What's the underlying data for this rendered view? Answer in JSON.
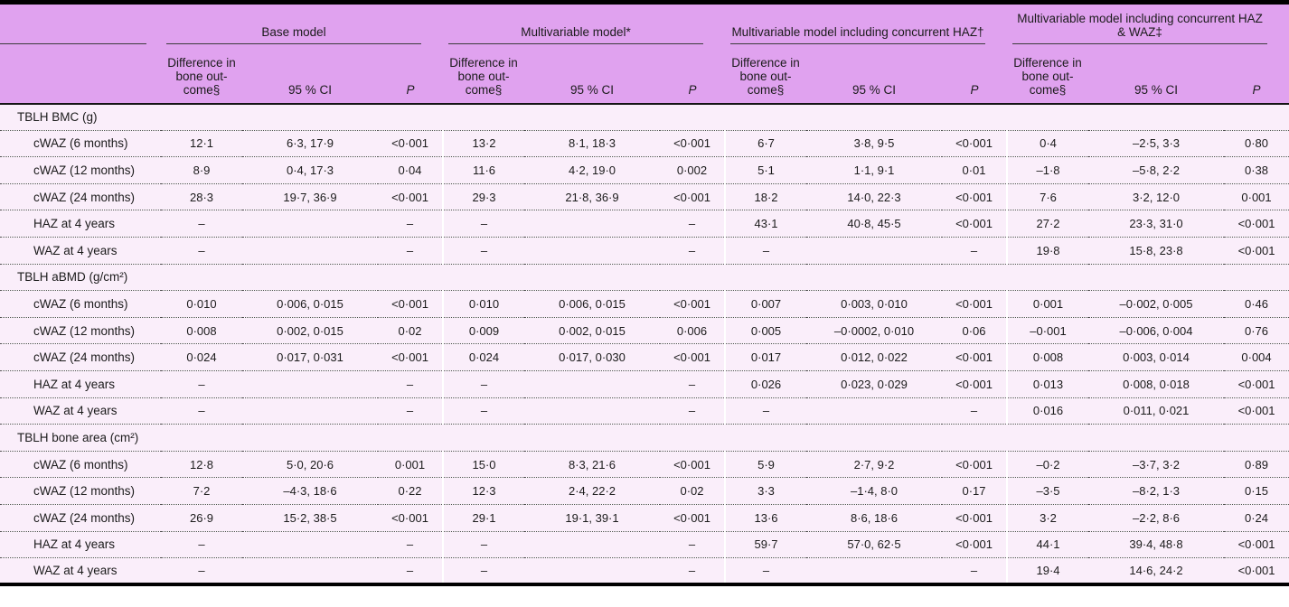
{
  "colors": {
    "header_bg": "#e0a2ef",
    "body_bg": "#faeefa",
    "text": "#1b1b1b",
    "border": "#000000"
  },
  "table": {
    "col_groups": [
      "",
      "Base model",
      "Multivariable model*",
      "Multivariable model including concurrent HAZ†",
      "Multivariable model including concurrent HAZ & WAZ‡"
    ],
    "sub_headers": {
      "diff_lines": [
        "Difference in",
        "bone out-",
        "come§"
      ],
      "ci": "95 % CI",
      "p": "P"
    },
    "sections": [
      {
        "title": "TBLH BMC (g)",
        "rows": [
          {
            "label": "cWAZ (6 months)",
            "cells": [
              "12·1",
              "6·3, 17·9",
              "<0·001",
              "13·2",
              "8·1, 18·3",
              "<0·001",
              "6·7",
              "3·8, 9·5",
              "<0·001",
              "0·4",
              "–2·5, 3·3",
              "0·80"
            ]
          },
          {
            "label": "cWAZ (12 months)",
            "cells": [
              "8·9",
              "0·4, 17·3",
              "0·04",
              "11·6",
              "4·2, 19·0",
              "0·002",
              "5·1",
              "1·1, 9·1",
              "0·01",
              "–1·8",
              "–5·8, 2·2",
              "0·38"
            ]
          },
          {
            "label": "cWAZ (24 months)",
            "cells": [
              "28·3",
              "19·7, 36·9",
              "<0·001",
              "29·3",
              "21·8, 36·9",
              "<0·001",
              "18·2",
              "14·0, 22·3",
              "<0·001",
              "7·6",
              "3·2, 12·0",
              "0·001"
            ]
          },
          {
            "label": "HAZ at 4 years",
            "cells": [
              "–",
              "",
              "–",
              "–",
              "",
              "–",
              "43·1",
              "40·8, 45·5",
              "<0·001",
              "27·2",
              "23·3, 31·0",
              "<0·001"
            ]
          },
          {
            "label": "WAZ at 4 years",
            "cells": [
              "–",
              "",
              "–",
              "–",
              "",
              "–",
              "–",
              "",
              "–",
              "19·8",
              "15·8, 23·8",
              "<0·001"
            ]
          }
        ]
      },
      {
        "title": "TBLH aBMD (g/cm²)",
        "rows": [
          {
            "label": "cWAZ (6 months)",
            "cells": [
              "0·010",
              "0·006, 0·015",
              "<0·001",
              "0·010",
              "0·006, 0·015",
              "<0·001",
              "0·007",
              "0·003, 0·010",
              "<0·001",
              "0·001",
              "–0·002, 0·005",
              "0·46"
            ]
          },
          {
            "label": "cWAZ (12 months)",
            "cells": [
              "0·008",
              "0·002, 0·015",
              "0·02",
              "0·009",
              "0·002, 0·015",
              "0·006",
              "0·005",
              "–0·0002, 0·010",
              "0·06",
              "–0·001",
              "–0·006, 0·004",
              "0·76"
            ]
          },
          {
            "label": "cWAZ (24 months)",
            "cells": [
              "0·024",
              "0·017, 0·031",
              "<0·001",
              "0·024",
              "0·017, 0·030",
              "<0·001",
              "0·017",
              "0·012, 0·022",
              "<0·001",
              "0·008",
              "0·003, 0·014",
              "0·004"
            ]
          },
          {
            "label": "HAZ at 4 years",
            "cells": [
              "–",
              "",
              "–",
              "–",
              "",
              "–",
              "0·026",
              "0·023, 0·029",
              "<0·001",
              "0·013",
              "0·008, 0·018",
              "<0·001"
            ]
          },
          {
            "label": "WAZ at 4 years",
            "cells": [
              "–",
              "",
              "–",
              "–",
              "",
              "–",
              "–",
              "",
              "–",
              "0·016",
              "0·011, 0·021",
              "<0·001"
            ]
          }
        ]
      },
      {
        "title": "TBLH bone area (cm²)",
        "rows": [
          {
            "label": "cWAZ (6 months)",
            "cells": [
              "12·8",
              "5·0, 20·6",
              "0·001",
              "15·0",
              "8·3, 21·6",
              "<0·001",
              "5·9",
              "2·7, 9·2",
              "<0·001",
              "–0·2",
              "–3·7, 3·2",
              "0·89"
            ]
          },
          {
            "label": "cWAZ (12 months)",
            "cells": [
              "7·2",
              "–4·3, 18·6",
              "0·22",
              "12·3",
              "2·4, 22·2",
              "0·02",
              "3·3",
              "–1·4, 8·0",
              "0·17",
              "–3·5",
              "–8·2, 1·3",
              "0·15"
            ]
          },
          {
            "label": "cWAZ (24 months)",
            "cells": [
              "26·9",
              "15·2, 38·5",
              "<0·001",
              "29·1",
              "19·1, 39·1",
              "<0·001",
              "13·6",
              "8·6, 18·6",
              "<0·001",
              "3·2",
              "–2·2, 8·6",
              "0·24"
            ]
          },
          {
            "label": "HAZ at 4 years",
            "cells": [
              "–",
              "",
              "–",
              "–",
              "",
              "–",
              "59·7",
              "57·0, 62·5",
              "<0·001",
              "44·1",
              "39·4, 48·8",
              "<0·001"
            ]
          },
          {
            "label": "WAZ at 4 years",
            "cells": [
              "–",
              "",
              "–",
              "–",
              "",
              "–",
              "–",
              "",
              "–",
              "19·4",
              "14·6, 24·2",
              "<0·001"
            ]
          }
        ]
      }
    ]
  }
}
